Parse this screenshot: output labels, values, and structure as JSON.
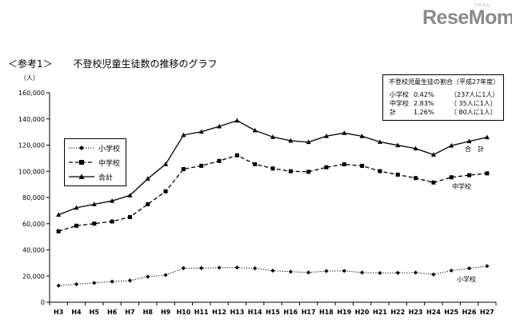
{
  "brand": {
    "logo": "ReseMom",
    "logo_kana": "リセマム"
  },
  "title": {
    "tag": "＜参考1＞",
    "text": "不登校児童生徒数の推移のグラフ"
  },
  "ratio_box": {
    "title": "不登校児童生徒の割合（平成27年度）",
    "rows": [
      {
        "label": "小学校",
        "value": "0.42%",
        "note": "（237人に1人）"
      },
      {
        "label": "中学校",
        "value": "2.83%",
        "note": "（ 35人に1人）"
      },
      {
        "label": "計",
        "value": "1.26%",
        "note": "（ 80人に1人）"
      }
    ]
  },
  "chart_data": {
    "type": "line",
    "ylabel": "（人）",
    "ylim": [
      0,
      160000
    ],
    "yticks": [
      "0",
      "20,000",
      "40,000",
      "60,000",
      "80,000",
      "100,000",
      "120,000",
      "140,000",
      "160,000"
    ],
    "x": [
      "H3",
      "H4",
      "H5",
      "H6",
      "H7",
      "H8",
      "H9",
      "H10",
      "H11",
      "H12",
      "H13",
      "H14",
      "H15",
      "H16",
      "H17",
      "H18",
      "H19",
      "H20",
      "H21",
      "H22",
      "H23",
      "H24",
      "H25",
      "H26",
      "H27"
    ],
    "series": [
      {
        "name": "小学校",
        "style": "dotted",
        "marker": "diamond",
        "end_label": "小学校",
        "values": [
          12645,
          13710,
          14769,
          15786,
          16569,
          19498,
          20765,
          26017,
          26047,
          26373,
          26511,
          25869,
          24077,
          23318,
          22709,
          23825,
          23927,
          22652,
          22327,
          22463,
          22622,
          21243,
          24175,
          25864,
          27581
        ]
      },
      {
        "name": "中学校",
        "style": "dashed",
        "marker": "square",
        "end_label": "中学校",
        "values": [
          54172,
          58421,
          60039,
          61663,
          65022,
          74853,
          84701,
          101675,
          104180,
          107913,
          112211,
          105383,
          102149,
          100040,
          99578,
          103069,
          105328,
          104153,
          100105,
          97428,
          94836,
          91446,
          95442,
          97033,
          98408
        ]
      },
      {
        "name": "合計",
        "style": "solid",
        "marker": "triangle",
        "end_label": "合　計",
        "values": [
          66817,
          72131,
          74808,
          77449,
          81591,
          94351,
          105466,
          127692,
          130227,
          134286,
          138722,
          131252,
          126226,
          123358,
          122287,
          126894,
          129255,
          126805,
          122432,
          119891,
          117458,
          112689,
          119617,
          122897,
          125991
        ]
      }
    ],
    "legend": "top-left",
    "grid": false
  }
}
